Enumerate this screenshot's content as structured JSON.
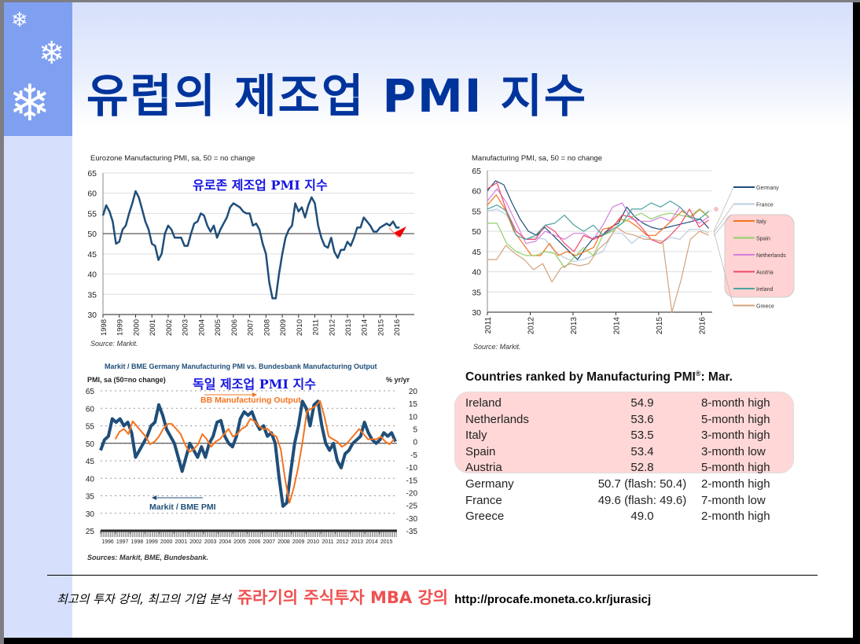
{
  "slide": {
    "title": "유럽의 제조업 PMI 지수"
  },
  "footer": {
    "tagline": "최고의 투자 강의, 최고의 기업 분석",
    "brand": "쥬라기의 주식투자 MBA 강의",
    "url": "http://procafe.moneta.co.kr/jurasicj"
  },
  "colors": {
    "title": "#00349c",
    "brand": "#f05050",
    "overlay": "#1515e0",
    "line_blue": "#1f4e79",
    "line_orange": "#f5731f"
  },
  "table": {
    "title": "Countries ranked by Manufacturing PMI",
    "title_sup": "®",
    "title_suffix": ": Mar.",
    "rows": [
      {
        "country": "Ireland",
        "value": "54.9",
        "note": "8-month high"
      },
      {
        "country": "Netherlands",
        "value": "53.6",
        "note": "5-month high"
      },
      {
        "country": "Italy",
        "value": "53.5",
        "note": "3-month high"
      },
      {
        "country": "Spain",
        "value": "53.4",
        "note": "3-month low"
      },
      {
        "country": "Austria",
        "value": "52.8",
        "note": "5-month high"
      },
      {
        "country": "Germany",
        "value": "50.7 (flash: 50.4)",
        "note": "2-month high"
      },
      {
        "country": "France",
        "value": "49.6 (flash: 49.6)",
        "note": "7-month low"
      },
      {
        "country": "Greece",
        "value": "49.0",
        "note": "2-month high"
      }
    ]
  },
  "chart_data": [
    {
      "type": "line",
      "title": "Eurozone Manufacturing PMI, sa, 50 = no change",
      "overlay": "유로존 제조업 PMI 지수",
      "source": "Source: Markit.",
      "ylim": [
        30,
        65
      ],
      "yticks": [
        30,
        35,
        40,
        45,
        50,
        55,
        60,
        65
      ],
      "xlim": [
        1998,
        2017.1
      ],
      "xticks": [
        1998,
        1999,
        2000,
        2001,
        2002,
        2003,
        2004,
        2005,
        2006,
        2007,
        2008,
        2009,
        2010,
        2011,
        2012,
        2013,
        2014,
        2015,
        2016
      ],
      "reference_line": 50,
      "series": [
        {
          "name": "Eurozone PMI",
          "color": "#1f4e79",
          "x_start": 1998,
          "x_end": 2016.2,
          "values": [
            54.5,
            57,
            55.5,
            53,
            47.5,
            48,
            51,
            52,
            55,
            57.5,
            60.5,
            59,
            56,
            53,
            51,
            47.5,
            47,
            43.5,
            45,
            50,
            52,
            51,
            49,
            49,
            49,
            47,
            47,
            50,
            52.5,
            53,
            55,
            54.5,
            52,
            50.5,
            52,
            49,
            51,
            52.5,
            54,
            56.5,
            57.5,
            57,
            56.5,
            55.5,
            55,
            55,
            52,
            52.5,
            51,
            47.5,
            45,
            38,
            34,
            34,
            40,
            45,
            49,
            51,
            52,
            57.5,
            55.5,
            56.5,
            54,
            57,
            59,
            57.5,
            52,
            49,
            47,
            46.5,
            49,
            45.5,
            44,
            46,
            46,
            48,
            47,
            49,
            51.5,
            51.5,
            54,
            53,
            52,
            50.5,
            50.5,
            51.5,
            52,
            52.5,
            52,
            53,
            51.5,
            51.5
          ]
        }
      ]
    },
    {
      "type": "line",
      "title": "Manufacturing PMI, sa, 50 = no change",
      "source": "Source: Markit.",
      "ylim": [
        30,
        65
      ],
      "yticks": [
        30,
        35,
        40,
        45,
        50,
        55,
        60,
        65
      ],
      "xlim": [
        2011,
        2016.25
      ],
      "xticks": [
        2011,
        2012,
        2013,
        2014,
        2015,
        2016
      ],
      "legend": "right",
      "series": [
        {
          "name": "Germany",
          "color": "#1f4e79",
          "x_start": 2011,
          "x_end": 2016.17,
          "values": [
            60,
            62.5,
            61.5,
            57,
            53,
            50,
            49,
            51,
            49,
            47,
            45,
            43,
            46,
            48.5,
            49,
            51,
            52,
            56,
            53.5,
            52,
            51,
            50.5,
            51,
            51.5,
            52,
            52.5,
            53,
            50.7
          ]
        },
        {
          "name": "France",
          "color": "#b9cde0",
          "x_start": 2011,
          "x_end": 2016.17,
          "values": [
            55,
            55.5,
            54,
            50,
            48,
            48.5,
            48,
            45,
            43.5,
            42.5,
            43,
            44,
            45,
            49.5,
            49.5,
            47,
            49,
            48,
            47,
            48.5,
            48,
            50.5,
            50.5,
            49.6
          ]
        },
        {
          "name": "Italy",
          "color": "#f5731f",
          "x_start": 2011,
          "x_end": 2016.17,
          "values": [
            56.5,
            59,
            55.5,
            50,
            47,
            44,
            44,
            47,
            44,
            45,
            44,
            45,
            46,
            50.5,
            51,
            53,
            52.5,
            51,
            49,
            49,
            51,
            53,
            55,
            53.5,
            55.5,
            53.5
          ]
        },
        {
          "name": "Spain",
          "color": "#8fd16a",
          "x_start": 2011,
          "x_end": 2016.17,
          "values": [
            52,
            52,
            47,
            45,
            44,
            44,
            45,
            44.5,
            41,
            43.5,
            46,
            44,
            49,
            50,
            52,
            53.5,
            54.5,
            53,
            54,
            54.5,
            54,
            53.5,
            55.5,
            53.4
          ]
        },
        {
          "name": "Netherlands",
          "color": "#d67ee0",
          "x_start": 2011,
          "x_end": 2016.17,
          "values": [
            57.5,
            60.5,
            57,
            52,
            47,
            47.5,
            50,
            49,
            48,
            49.5,
            49.5,
            48,
            51.5,
            56,
            57,
            53,
            52.5,
            52.5,
            53.5,
            52.5,
            56,
            53.5,
            52,
            53.6
          ]
        },
        {
          "name": "Austria",
          "color": "#f04a6a",
          "x_start": 2011,
          "x_end": 2016.17,
          "values": [
            60.5,
            62,
            55,
            50,
            48,
            48,
            51.5,
            50,
            47,
            45,
            49,
            48,
            49,
            51,
            54,
            53.5,
            51,
            48,
            47,
            49,
            51.5,
            55.5,
            51,
            52.8
          ]
        },
        {
          "name": "Ireland",
          "color": "#4aa3a0",
          "x_start": 2011,
          "x_end": 2016.17,
          "values": [
            55.5,
            56.5,
            55,
            49,
            48,
            49,
            51.5,
            52,
            54,
            51.5,
            50,
            51.5,
            49,
            50.5,
            52,
            55.5,
            55.5,
            57,
            56,
            57.5,
            56,
            53.5,
            53,
            54.9
          ]
        },
        {
          "name": "Greece",
          "color": "#d4a27a",
          "x_start": 2011,
          "x_end": 2016.17,
          "values": [
            43,
            43,
            46.5,
            44.5,
            43,
            40.5,
            42,
            37.5,
            41,
            42,
            41.5,
            42,
            45.5,
            47.5,
            51,
            49.5,
            49,
            48,
            48,
            47.5,
            30,
            38,
            48,
            50,
            49
          ]
        }
      ]
    },
    {
      "type": "line",
      "title": "Markit / BME Germany Manufacturing PMI vs. Bundesbank Manufacturing Output",
      "overlay": "독일 제조업 PMI 지수",
      "ylabel_left": "PMI, sa (50=no change)",
      "ylabel_right": "% yr/yr",
      "source": "Sources: Markit, BME, Bundesbank.",
      "ylim": [
        25,
        65
      ],
      "yticks": [
        25,
        30,
        35,
        40,
        45,
        50,
        55,
        60,
        65
      ],
      "ylim_right": [
        -35,
        20
      ],
      "yticks_right": [
        -35,
        -30,
        -25,
        -20,
        -15,
        -10,
        -5,
        0,
        5,
        10,
        15,
        20
      ],
      "xlim": [
        1996,
        2016.2
      ],
      "xticks": [
        1996,
        1997,
        1998,
        1999,
        2000,
        2001,
        2002,
        2003,
        2004,
        2005,
        2006,
        2007,
        2008,
        2009,
        2010,
        2011,
        2012,
        2013,
        2014,
        2015
      ],
      "annotations": [
        "BB Manufacturing Output",
        "Markit / BME PMI"
      ],
      "series": [
        {
          "name": "Markit / BME PMI",
          "axis": "left",
          "color": "#1f4e79",
          "x_start": 1996,
          "x_end": 2016.1,
          "values": [
            48,
            51,
            52,
            57,
            56,
            57,
            55,
            56,
            53,
            46,
            48,
            50,
            52,
            55,
            56,
            61,
            58,
            54,
            52,
            50,
            46,
            42,
            46,
            50,
            48,
            46,
            49,
            46,
            50,
            52,
            56,
            56.5,
            52,
            50,
            49,
            52,
            57,
            59,
            58,
            59,
            56,
            54,
            55,
            52,
            53,
            50,
            40,
            32,
            33,
            42,
            50,
            55,
            62,
            60,
            55,
            61,
            62,
            55,
            50,
            48,
            50,
            45,
            43,
            47,
            48,
            50,
            51,
            52,
            56,
            53,
            51,
            50,
            51,
            53,
            52,
            53,
            50.5
          ]
        },
        {
          "name": "BB Manufacturing Output",
          "axis": "right",
          "color": "#f5731f",
          "x_start": 1997,
          "x_end": 2016.0,
          "values": [
            1,
            4,
            5,
            3,
            8,
            6,
            4,
            2,
            -1,
            0,
            2,
            5,
            7,
            7,
            5,
            3,
            -1,
            -4,
            -3,
            -1,
            3,
            1,
            -2,
            0,
            1,
            3,
            5,
            2,
            3,
            5,
            6,
            9,
            8,
            6,
            5,
            5,
            3,
            2,
            -3,
            -15,
            -24,
            -18,
            -10,
            0,
            12,
            13,
            14,
            16,
            10,
            2,
            1,
            0,
            -2,
            -1,
            1,
            3,
            5,
            3,
            1,
            1,
            1,
            2,
            0,
            -1,
            1
          ]
        }
      ]
    }
  ]
}
